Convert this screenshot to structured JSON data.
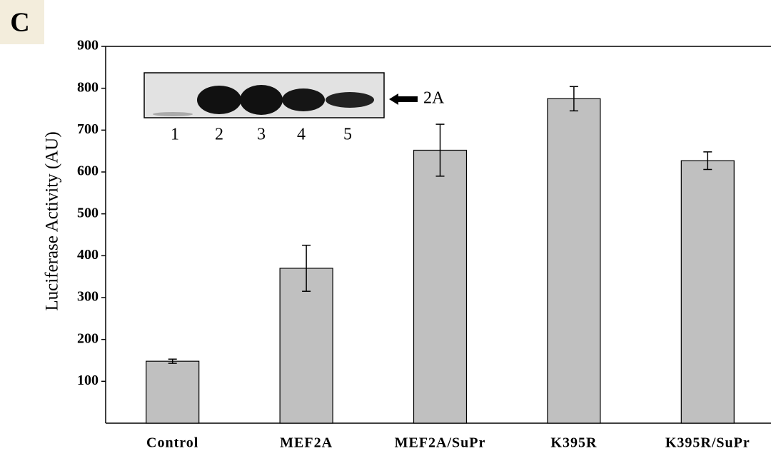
{
  "panel_label": "C",
  "chart_data": {
    "type": "bar",
    "y_label": "Luciferase Activity (AU)",
    "categories": [
      "Control",
      "MEF2A",
      "MEF2A/SuPr",
      "K395R",
      "K395R/SuPr"
    ],
    "values": [
      148,
      370,
      652,
      775,
      627
    ],
    "errors": [
      5,
      55,
      62,
      29,
      21
    ],
    "color": "#c0c0c0",
    "ylim": [
      0,
      900
    ],
    "yticks": [
      100,
      200,
      300,
      400,
      500,
      600,
      700,
      800,
      900
    ],
    "inset_lanes": [
      "1",
      "2",
      "3",
      "4",
      "5"
    ],
    "inset_marker": "2A"
  }
}
